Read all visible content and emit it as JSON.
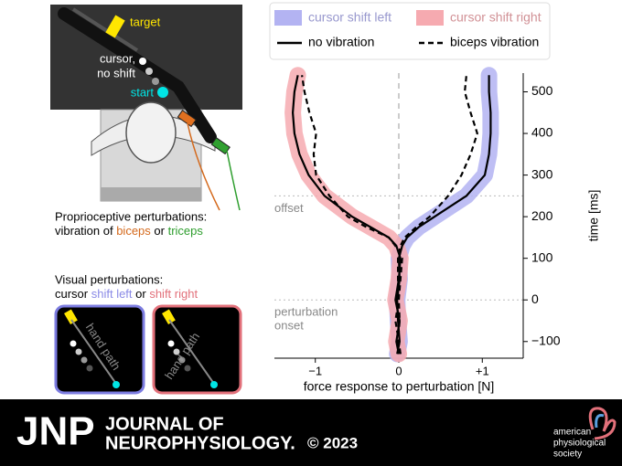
{
  "setup": {
    "target": "target",
    "cursor": [
      "cursor,",
      "no shift"
    ],
    "start": "start"
  },
  "proprioceptive": {
    "title": "Proprioceptive perturbations:",
    "line": [
      "vibration of ",
      "biceps",
      " or ",
      "triceps"
    ]
  },
  "visual": {
    "title": "Visual perturbations:",
    "line": [
      "cursor ",
      "shift left",
      " or ",
      "shift right"
    ],
    "hand_path": [
      "hand path",
      "hand path"
    ]
  },
  "chart_data": {
    "type": "line",
    "xlabel": "force response to perturbation [N]",
    "ylabel": "time [ms]",
    "xlim": [
      -1.49,
      1.49
    ],
    "ylim": [
      -140,
      545
    ],
    "xticks": [
      {
        "value": -1,
        "label": "−1"
      },
      0,
      {
        "value": 1,
        "label": "+1"
      }
    ],
    "yticks": [
      {
        "value": -100,
        "label": "−100"
      },
      0,
      100,
      200,
      300,
      400,
      500
    ],
    "legend": {
      "colors": [
        {
          "name": "cursor shift left",
          "color": "#b3b3f2"
        },
        {
          "name": "cursor shift right",
          "color": "#f6aab0"
        }
      ],
      "styles": [
        {
          "name": "no vibration",
          "dash": false
        },
        {
          "name": "biceps vibration",
          "dash": true
        }
      ]
    },
    "time": [
      -130,
      -100,
      -50,
      0,
      50,
      100,
      130,
      150,
      175,
      200,
      250,
      300,
      350,
      400,
      450,
      500,
      540
    ],
    "series": [
      {
        "color": "#b3b3f2",
        "dash": false,
        "values": [
          -0.02,
          0.01,
          -0.01,
          -0.02,
          0.01,
          0,
          0.04,
          0.1,
          0.24,
          0.43,
          0.81,
          1.03,
          1.08,
          1.1,
          1.1,
          1.08,
          1.08
        ]
      },
      {
        "color": "#b3b3f2",
        "dash": true,
        "values": [
          0.02,
          -0.01,
          0.01,
          0,
          -0.01,
          -0.01,
          0.02,
          0.07,
          0.21,
          0.37,
          0.59,
          0.75,
          0.86,
          0.94,
          0.86,
          0.79,
          0.81
        ]
      },
      {
        "color": "#f6aab0",
        "dash": false,
        "values": [
          0,
          -0.03,
          0.01,
          -0.04,
          0,
          0.02,
          -0.03,
          -0.12,
          -0.34,
          -0.56,
          -0.89,
          -1.08,
          -1.19,
          -1.25,
          -1.27,
          -1.25,
          -1.21
        ]
      },
      {
        "color": "#f6aab0",
        "dash": true,
        "values": [
          0.02,
          0,
          -0.04,
          0,
          0.02,
          0.04,
          -0.04,
          -0.12,
          -0.39,
          -0.61,
          -0.83,
          -0.99,
          -1.02,
          -0.99,
          -1.07,
          -1.13,
          -1.16
        ]
      }
    ],
    "annotations": [
      {
        "text": [
          "offset"
        ],
        "y": 250
      },
      {
        "text": [
          "perturbation",
          "onset"
        ],
        "y": 0
      }
    ]
  },
  "footer": {
    "abbrev": "JNP",
    "name": [
      "JOURNAL OF",
      "NEUROPHYSIOLOGY."
    ],
    "year": "© 2023",
    "society": [
      "american",
      "physiological",
      "society"
    ]
  }
}
